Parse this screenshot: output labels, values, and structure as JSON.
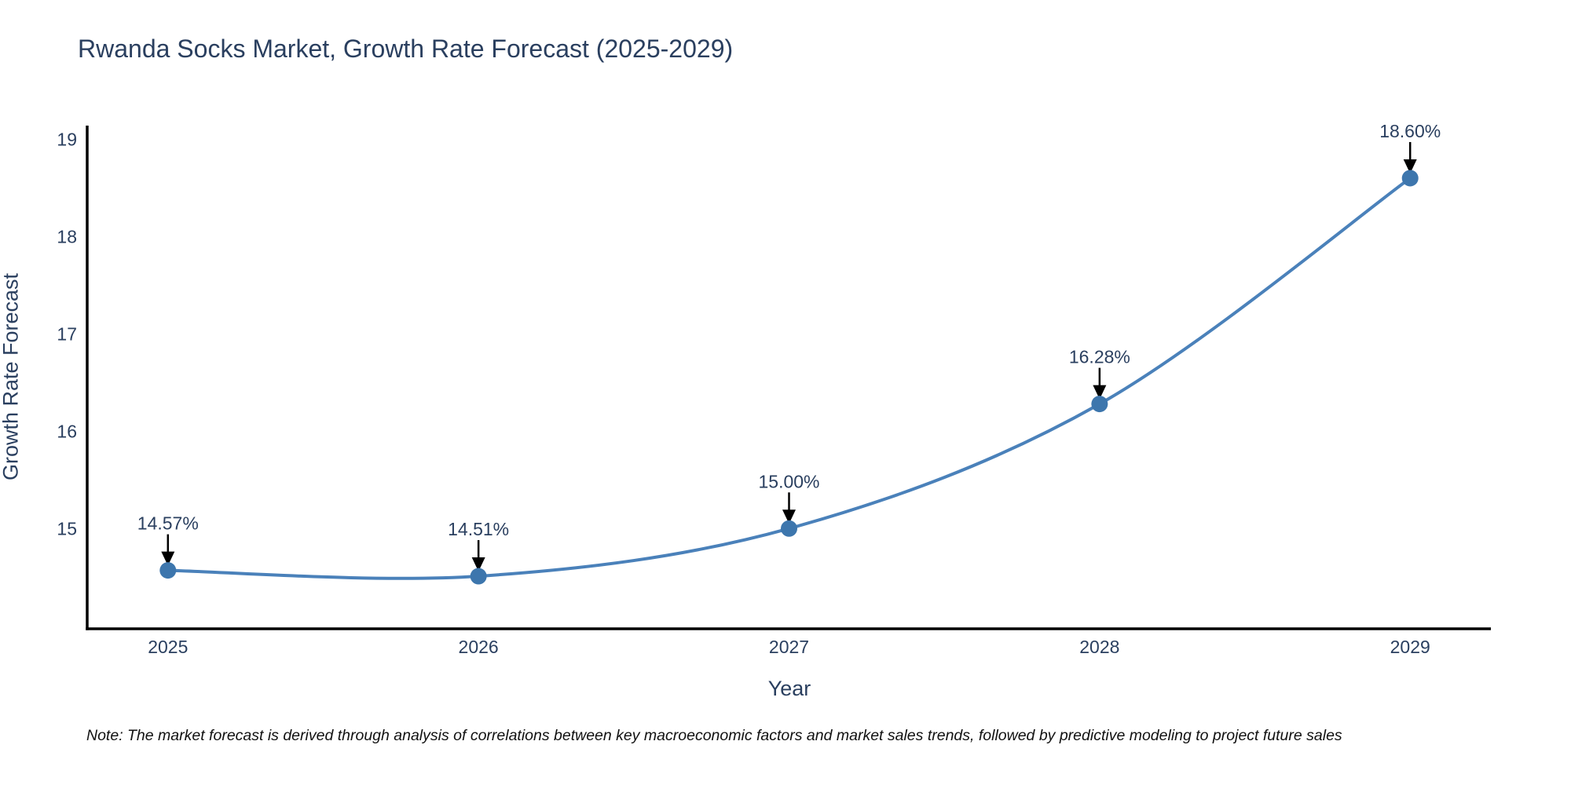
{
  "header": {
    "title": "Rwanda Socks Market, Growth Rate Forecast (2025-2029)"
  },
  "footnote": "Note: The market forecast is derived through analysis of correlations between key macroeconomic factors and market sales trends, followed by predictive modeling to project future sales",
  "chart_data": {
    "type": "line",
    "title": "Rwanda Socks Market, Growth Rate Forecast (2025-2029)",
    "xlabel": "Year",
    "ylabel": "Growth Rate Forecast",
    "x": [
      2025,
      2026,
      2027,
      2028,
      2029
    ],
    "values": [
      14.57,
      14.51,
      15.0,
      16.28,
      18.6
    ],
    "point_labels": [
      "14.57%",
      "14.51%",
      "15.00%",
      "16.28%",
      "18.60%"
    ],
    "xtick_labels": [
      "2025",
      "2026",
      "2027",
      "2028",
      "2029"
    ],
    "ytick_values": [
      15,
      16,
      17,
      18,
      19
    ],
    "xlim": [
      2024.74,
      2029.26
    ],
    "ylim": [
      13.97,
      19.14
    ],
    "line_shape": "spline",
    "grid": false,
    "legend_position": "none",
    "colors": {
      "line": "#4a81ba",
      "marker": "#3d76ad",
      "arrow": "#000000",
      "axis_spine": "#000000",
      "text": "#2a3f5f"
    }
  }
}
